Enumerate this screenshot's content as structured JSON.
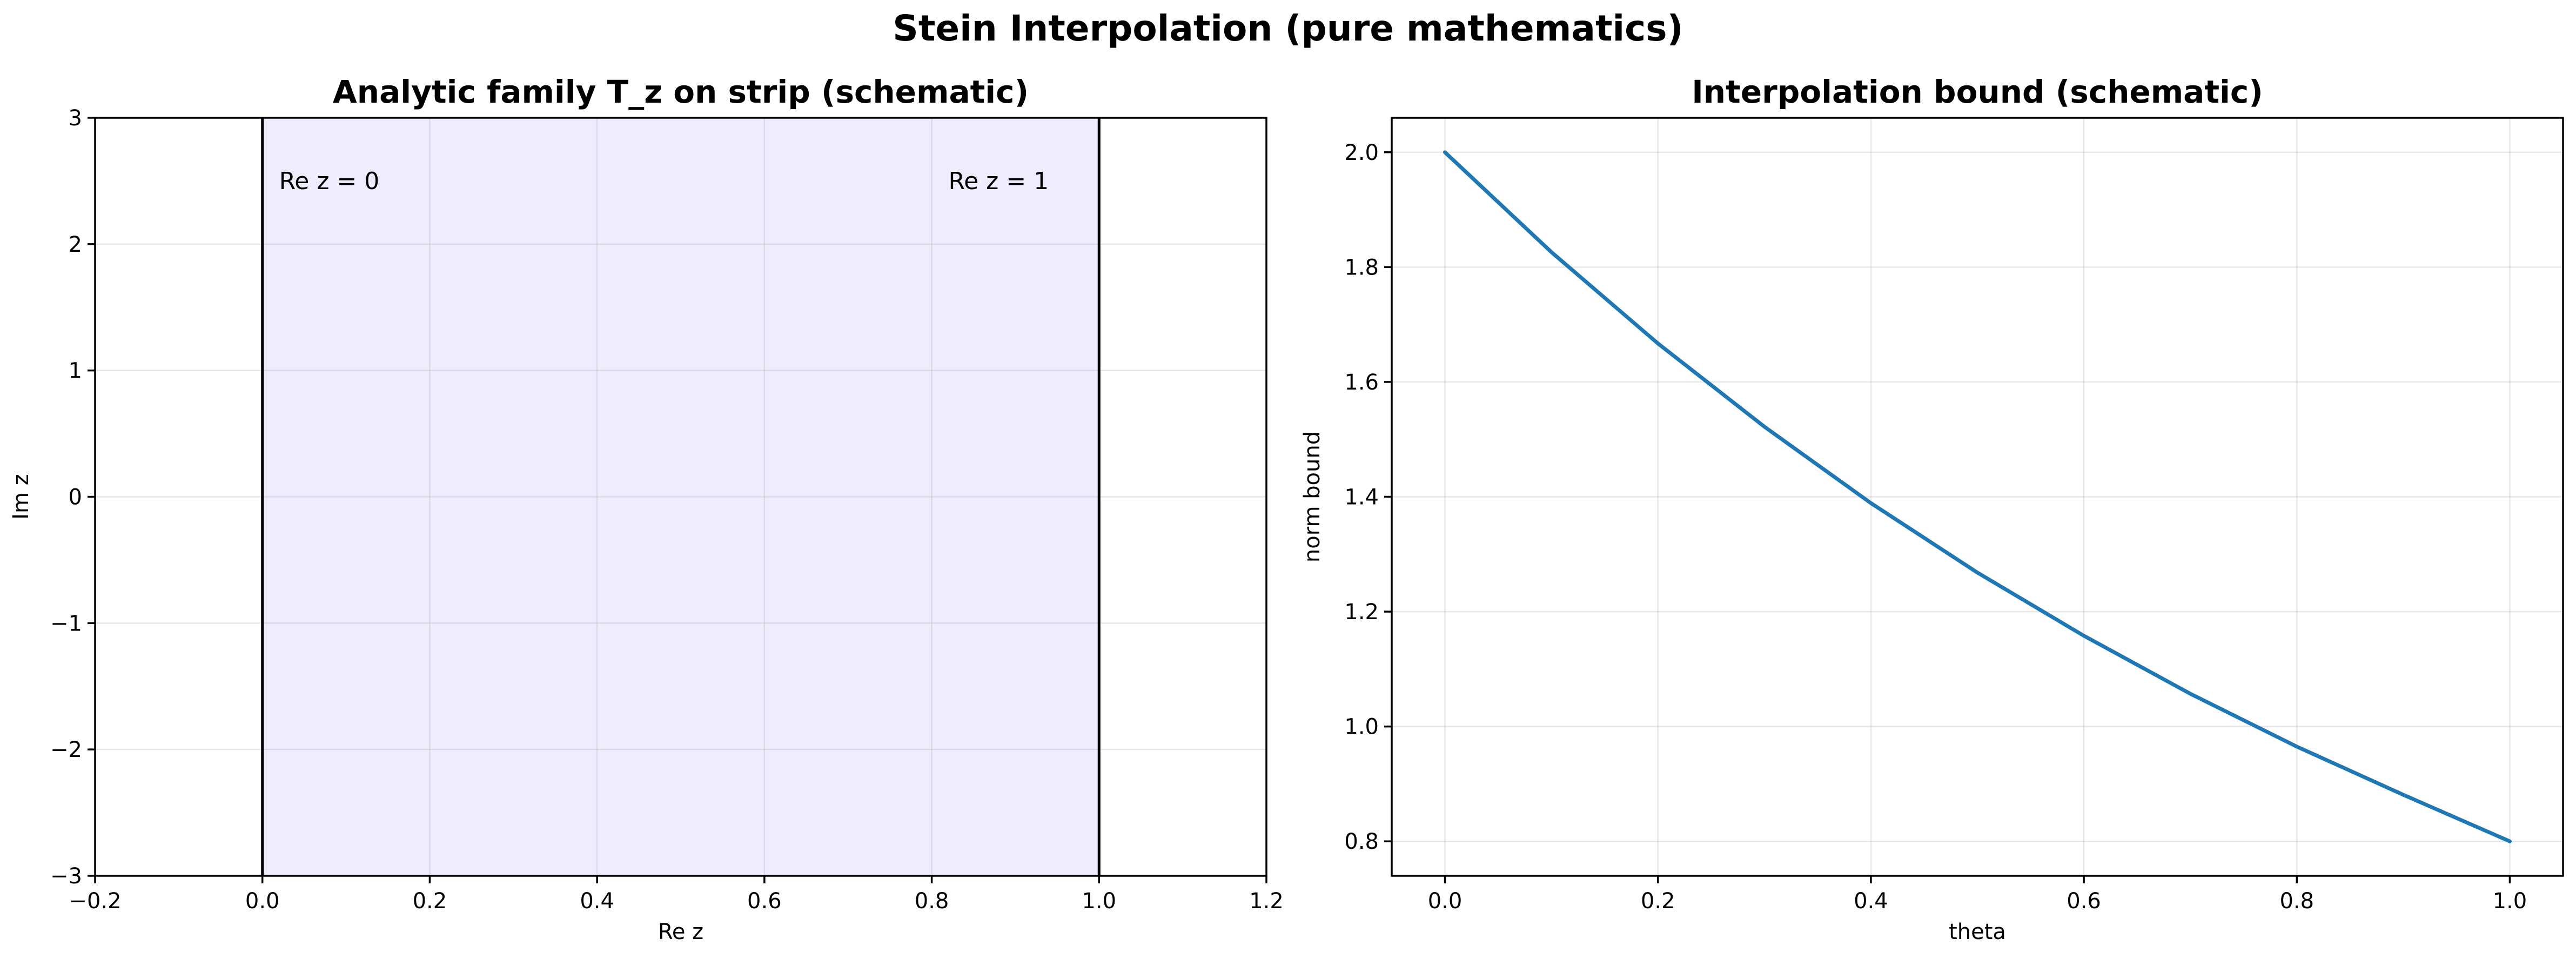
{
  "figure": {
    "title": "Stein Interpolation (pure mathematics)"
  },
  "chart_data": [
    {
      "type": "area",
      "title": "Analytic family T_z on strip (schematic)",
      "xlabel": "Re z",
      "ylabel": "Im z",
      "xlim": [
        -0.2,
        1.2
      ],
      "ylim": [
        -3,
        3
      ],
      "xticks": [
        -0.2,
        0.0,
        0.2,
        0.4,
        0.6,
        0.8,
        1.0,
        1.2
      ],
      "yticks": [
        -3,
        -2,
        -1,
        0,
        1,
        2,
        3
      ],
      "xtick_labels": [
        "−0.2",
        "0.0",
        "0.2",
        "0.4",
        "0.6",
        "0.8",
        "1.0",
        "1.2"
      ],
      "ytick_labels": [
        "−3",
        "−2",
        "−1",
        "0",
        "1",
        "2",
        "3"
      ],
      "grid": true,
      "strip": {
        "x0": 0,
        "x1": 1,
        "color": "#ededfd"
      },
      "boundary_lines": [
        0,
        1
      ],
      "annotations": [
        {
          "text": "Re z = 0",
          "x": 0.02,
          "y": 2.5
        },
        {
          "text": "Re z = 1",
          "x": 0.82,
          "y": 2.5
        }
      ]
    },
    {
      "type": "line",
      "title": "Interpolation bound (schematic)",
      "xlabel": "theta",
      "ylabel": "norm bound",
      "xlim": [
        -0.05,
        1.05
      ],
      "ylim": [
        0.74,
        2.06
      ],
      "xticks": [
        0.0,
        0.2,
        0.4,
        0.6,
        0.8,
        1.0
      ],
      "yticks": [
        0.8,
        1.0,
        1.2,
        1.4,
        1.6,
        1.8,
        2.0
      ],
      "xtick_labels": [
        "0.0",
        "0.2",
        "0.4",
        "0.6",
        "0.8",
        "1.0"
      ],
      "ytick_labels": [
        "0.8",
        "1.0",
        "1.2",
        "1.4",
        "1.6",
        "1.8",
        "2.0"
      ],
      "grid": true,
      "series": [
        {
          "color": "#1f77b4",
          "x": [
            0.0,
            0.1,
            0.2,
            0.3,
            0.4,
            0.5,
            0.6,
            0.7,
            0.8,
            0.9,
            1.0
          ],
          "y": [
            2.0,
            1.826,
            1.667,
            1.522,
            1.389,
            1.268,
            1.158,
            1.057,
            0.965,
            0.881,
            0.8
          ]
        }
      ]
    }
  ]
}
